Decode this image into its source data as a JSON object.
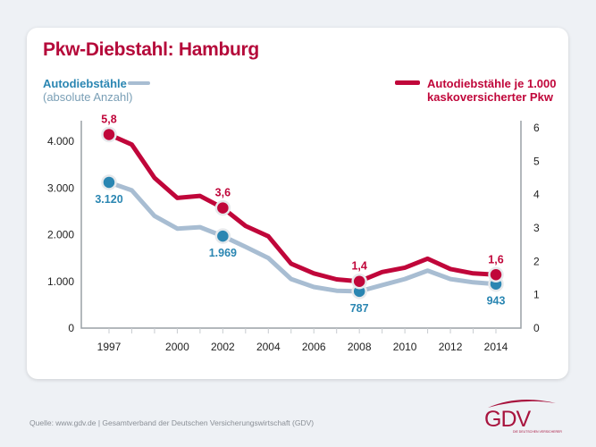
{
  "chart_data": {
    "type": "line",
    "title": "Pkw-Diebstahl: Hamburg",
    "x": [
      1997,
      1998,
      1999,
      2000,
      2001,
      2002,
      2003,
      2004,
      2005,
      2006,
      2007,
      2008,
      2009,
      2010,
      2011,
      2012,
      2013,
      2014
    ],
    "x_tick_labels": [
      "1997",
      "2000",
      "2002",
      "2004",
      "2006",
      "2008",
      "2010",
      "2012",
      "2014"
    ],
    "y_left": {
      "range": [
        0,
        4000
      ],
      "tick_labels": [
        "0",
        "1.000",
        "2.000",
        "3.000",
        "4.000"
      ]
    },
    "y_right": {
      "range": [
        0,
        6
      ],
      "tick_labels": [
        "0",
        "1",
        "2",
        "3",
        "4",
        "5",
        "6"
      ]
    },
    "grid": false,
    "series": [
      {
        "name": "Autodiebstähle",
        "subname": "(absolute Anzahl)",
        "axis": "left",
        "color": "#a8bdd2",
        "marker_color": "#2a86b2",
        "values": [
          3120,
          2950,
          2400,
          2130,
          2160,
          1969,
          1740,
          1500,
          1050,
          880,
          800,
          787,
          920,
          1050,
          1230,
          1050,
          980,
          943
        ],
        "labels": [
          {
            "x": 1997,
            "text": "3.120"
          },
          {
            "x": 2002,
            "text": "1.969"
          },
          {
            "x": 2008,
            "text": "787"
          },
          {
            "x": 2014,
            "text": "943"
          }
        ]
      },
      {
        "name": "Autodiebstähle je 1.000 kaskoversicherter Pkw",
        "axis": "right",
        "color": "#c0063a",
        "marker_color": "#c0063a",
        "values": [
          5.8,
          5.5,
          4.5,
          3.9,
          3.96,
          3.6,
          3.06,
          2.75,
          1.93,
          1.64,
          1.46,
          1.4,
          1.68,
          1.81,
          2.08,
          1.77,
          1.64,
          1.6
        ],
        "labels": [
          {
            "x": 1997,
            "text": "5,8"
          },
          {
            "x": 2002,
            "text": "3,6"
          },
          {
            "x": 2008,
            "text": "1,4"
          },
          {
            "x": 2014,
            "text": "1,6"
          }
        ]
      }
    ],
    "legend_placement": "top"
  },
  "legend": {
    "left_line1": "Autodiebstähle",
    "left_line2": "(absolute Anzahl)",
    "right_line1": "Autodiebstähle je 1.000",
    "right_line2": "kaskoversicherter Pkw"
  },
  "footer": {
    "source": "Quelle: www.gdv.de | Gesamtverband der Deutschen Versicherungswirtschaft (GDV)",
    "logo_text": "GDV",
    "logo_subtext": "DIE DEUTSCHEN VERSICHERER"
  }
}
